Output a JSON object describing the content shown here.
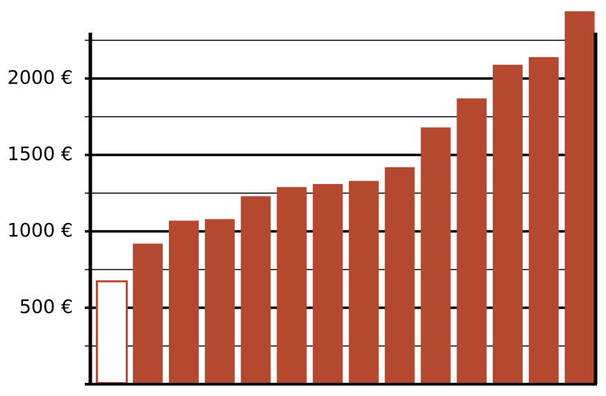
{
  "chart_data": {
    "type": "bar",
    "values": [
      680,
      920,
      1070,
      1080,
      1230,
      1290,
      1310,
      1330,
      1420,
      1680,
      1870,
      2090,
      2140,
      2440
    ],
    "color": "#b5492f",
    "outlined_bars": [
      0
    ],
    "ylim": [
      0,
      2300
    ],
    "yticks": [
      {
        "value": 500,
        "label": "500 €"
      },
      {
        "value": 1000,
        "label": "1000 €"
      },
      {
        "value": 1500,
        "label": "1500 €"
      },
      {
        "value": 2000,
        "label": "2000 €"
      }
    ],
    "minor_yticks": [
      250,
      750,
      1250,
      1750,
      2250
    ],
    "grid": true
  }
}
